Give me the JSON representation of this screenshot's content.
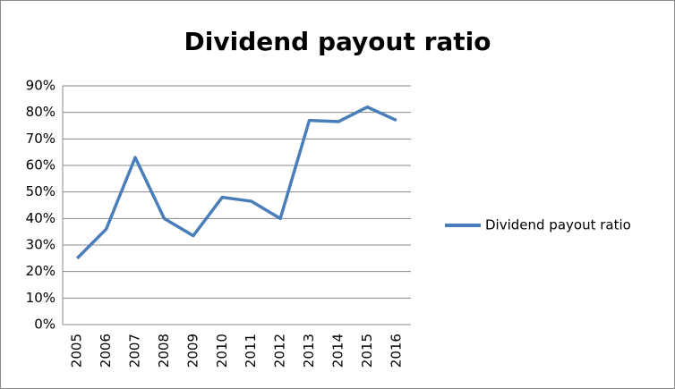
{
  "chart_data": {
    "type": "line",
    "title": "Dividend payout ratio",
    "categories": [
      "2005",
      "2006",
      "2007",
      "2008",
      "2009",
      "2010",
      "2011",
      "2012",
      "2013",
      "2014",
      "2015",
      "2016"
    ],
    "series": [
      {
        "name": "Dividend payout ratio",
        "color": "#4a7ebb",
        "values": [
          25,
          36,
          63,
          40,
          33.5,
          48,
          46.5,
          40,
          77,
          76.5,
          82,
          77
        ]
      }
    ],
    "ylim": [
      0,
      90
    ],
    "yticks": [
      {
        "value": 0,
        "label": "0%"
      },
      {
        "value": 10,
        "label": "10%"
      },
      {
        "value": 20,
        "label": "20%"
      },
      {
        "value": 30,
        "label": "30%"
      },
      {
        "value": 40,
        "label": "40%"
      },
      {
        "value": 50,
        "label": "50%"
      },
      {
        "value": 60,
        "label": "60%"
      },
      {
        "value": 70,
        "label": "70%"
      },
      {
        "value": 80,
        "label": "80%"
      },
      {
        "value": 90,
        "label": "90%"
      }
    ],
    "grid": true,
    "legend": "right"
  }
}
